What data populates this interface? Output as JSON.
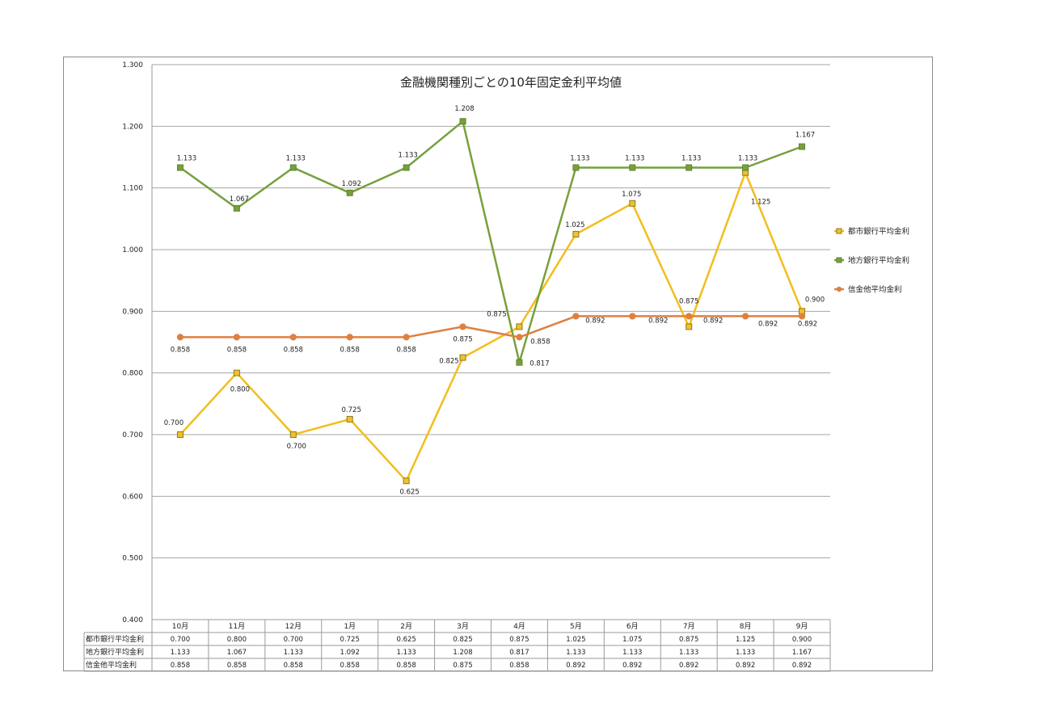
{
  "chart_data": {
    "type": "line",
    "title": "金融機関種別ごとの10年固定金利平均値",
    "categories": [
      "10月",
      "11月",
      "12月",
      "1月",
      "2月",
      "3月",
      "4月",
      "5月",
      "6月",
      "7月",
      "8月",
      "9月"
    ],
    "ylim": [
      0.4,
      1.3
    ],
    "yticks": [
      "0.400",
      "0.500",
      "0.600",
      "0.700",
      "0.800",
      "0.900",
      "1.000",
      "1.100",
      "1.200",
      "1.300"
    ],
    "grid": true,
    "legend_position": "right",
    "series": [
      {
        "name": "都市銀行平均金利",
        "color": "#F2BE1C",
        "marker": "square",
        "values": [
          0.7,
          0.8,
          0.7,
          0.725,
          0.625,
          0.825,
          0.875,
          1.025,
          1.075,
          0.875,
          1.125,
          0.9
        ],
        "labels": [
          "0.700",
          "0.800",
          "0.700",
          "0.725",
          "0.625",
          "0.825",
          "0.875",
          "1.025",
          "1.075",
          "0.875",
          "1.125",
          "0.900"
        ]
      },
      {
        "name": "地方銀行平均金利",
        "color": "#77A03C",
        "marker": "square",
        "values": [
          1.133,
          1.067,
          1.133,
          1.092,
          1.133,
          1.208,
          0.817,
          1.133,
          1.133,
          1.133,
          1.133,
          1.167
        ],
        "labels": [
          "1.133",
          "1.067",
          "1.133",
          "1.092",
          "1.133",
          "1.208",
          "0.817",
          "1.133",
          "1.133",
          "1.133",
          "1.133",
          "1.167"
        ]
      },
      {
        "name": "信金他平均金利",
        "color": "#DD8040",
        "marker": "circle",
        "values": [
          0.858,
          0.858,
          0.858,
          0.858,
          0.858,
          0.875,
          0.858,
          0.892,
          0.892,
          0.892,
          0.892,
          0.892
        ],
        "labels": [
          "0.858",
          "0.858",
          "0.858",
          "0.858",
          "0.858",
          "0.875",
          "0.858",
          "0.892",
          "0.892",
          "0.892",
          "0.892",
          "0.892"
        ]
      }
    ]
  }
}
